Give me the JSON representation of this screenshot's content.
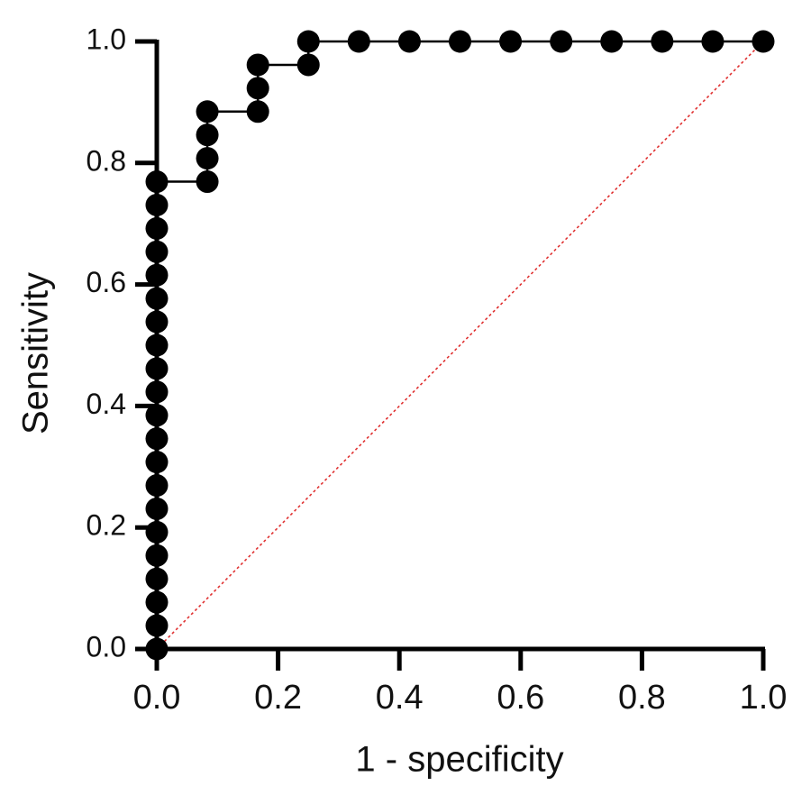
{
  "chart_data": {
    "type": "line",
    "x_label": "1 - specificity",
    "y_label": "Sensitivity",
    "xlim": [
      0,
      1
    ],
    "ylim": [
      0,
      1
    ],
    "xticks": [
      {
        "value": 0,
        "label": "0.0"
      },
      {
        "value": 0.2,
        "label": "0.2"
      },
      {
        "value": 0.4,
        "label": "0.4"
      },
      {
        "value": 0.6,
        "label": "0.6"
      },
      {
        "value": 0.8,
        "label": "0.8"
      },
      {
        "value": 1,
        "label": "1.0"
      }
    ],
    "yticks": [
      {
        "value": 0,
        "label": "0.0"
      },
      {
        "value": 0.2,
        "label": "0.2"
      },
      {
        "value": 0.4,
        "label": "0.4"
      },
      {
        "value": 0.6,
        "label": "0.6"
      },
      {
        "value": 0.8,
        "label": "0.8"
      },
      {
        "value": 1,
        "label": "1.0"
      }
    ],
    "series": [
      {
        "color": "#000000",
        "markers": true,
        "x": [
          0,
          0,
          0,
          0,
          0,
          0,
          0,
          0,
          0,
          0,
          0,
          0,
          0,
          0,
          0,
          0,
          0,
          0,
          0,
          0,
          0,
          0.0833,
          0.0833,
          0.0833,
          0.0833,
          0.1667,
          0.1667,
          0.1667,
          0.25,
          0.25,
          0.3333,
          0.4167,
          0.5,
          0.5833,
          0.6667,
          0.75,
          0.8333,
          0.9167,
          1.0
        ],
        "values": [
          0,
          0.0385,
          0.0769,
          0.1154,
          0.1538,
          0.1923,
          0.2308,
          0.2692,
          0.3077,
          0.3462,
          0.3846,
          0.4231,
          0.4615,
          0.5,
          0.5385,
          0.5769,
          0.6154,
          0.6538,
          0.6923,
          0.7308,
          0.7692,
          0.7692,
          0.8077,
          0.8462,
          0.8846,
          0.8846,
          0.9231,
          0.9615,
          0.9615,
          1.0,
          1.0,
          1.0,
          1.0,
          1.0,
          1.0,
          1.0,
          1.0,
          1.0,
          1.0
        ]
      },
      {
        "color": "#e03030",
        "markers": false,
        "dash": "dotted",
        "x": [
          0,
          1
        ],
        "values": [
          0,
          1
        ]
      }
    ]
  }
}
